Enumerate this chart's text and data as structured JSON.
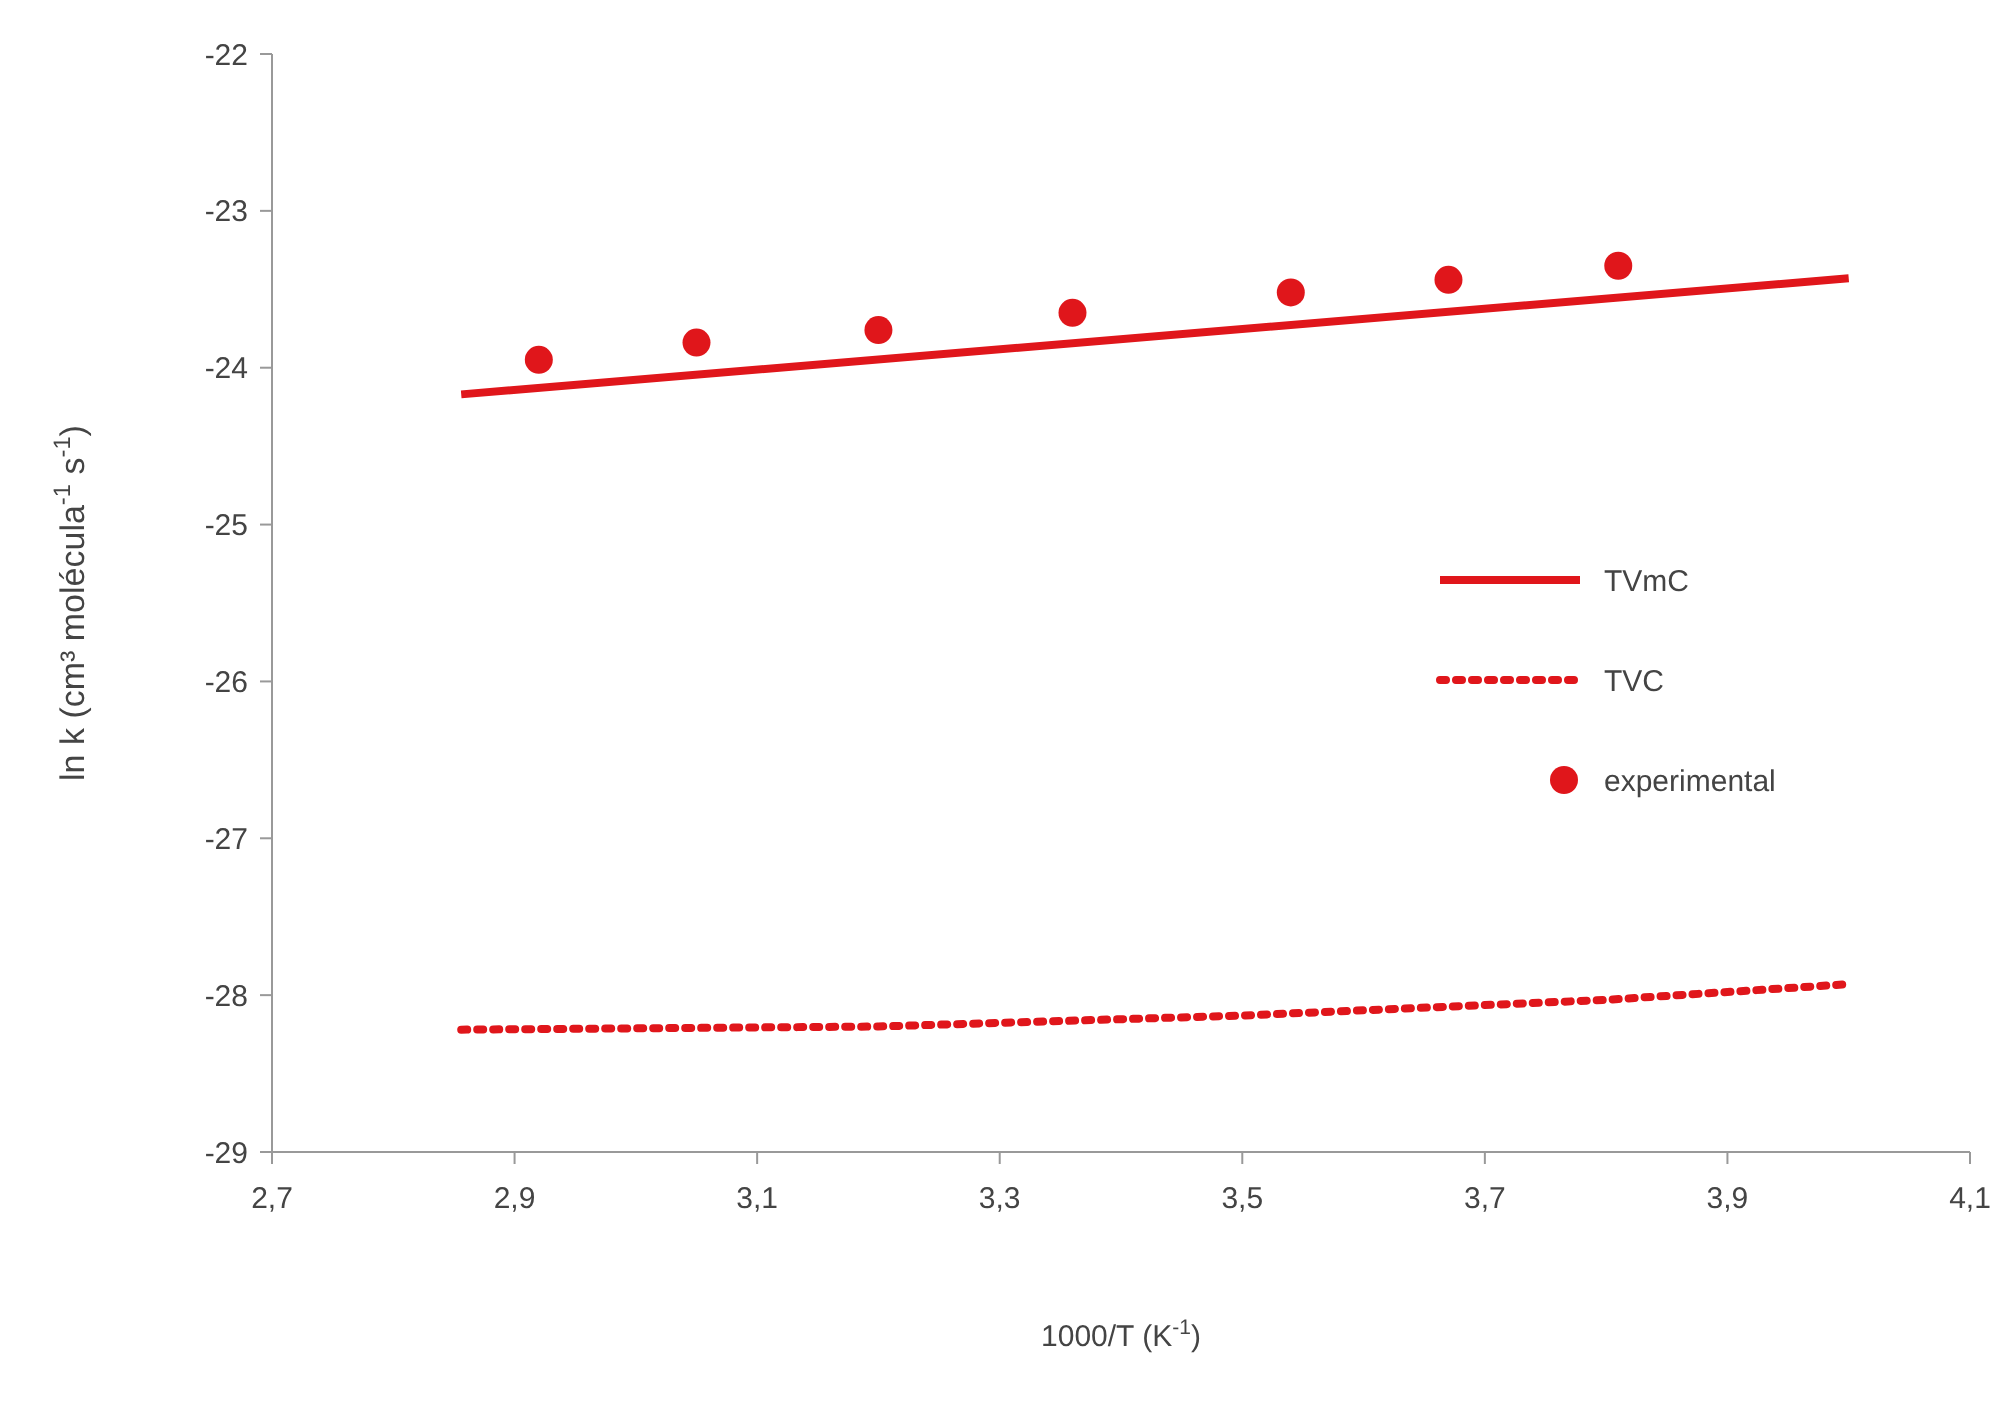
{
  "chart_data": {
    "type": "line",
    "xlabel": "1000/T (K$^{-1}$)",
    "ylabel": "ln k (cm³ molécula$^{-1}$ s$^{-1}$)",
    "xlim": [
      2.7,
      4.1
    ],
    "xticks": [
      {
        "value": 2.7,
        "label": "2,7"
      },
      {
        "value": 2.9,
        "label": "2,9"
      },
      {
        "value": 3.1,
        "label": "3,1"
      },
      {
        "value": 3.3,
        "label": "3,3"
      },
      {
        "value": 3.5,
        "label": "3,5"
      },
      {
        "value": 3.7,
        "label": "3,7"
      },
      {
        "value": 3.9,
        "label": "3,9"
      },
      {
        "value": 4.1,
        "label": "4,1"
      }
    ],
    "ylim": [
      -29,
      -22
    ],
    "yticks": [
      -29,
      -28,
      -27,
      -26,
      -25,
      -24,
      -23,
      -22
    ],
    "grid": false,
    "legend": "right",
    "series": [
      {
        "name": "TVmC",
        "line_style": "solid",
        "color": "#e0161b",
        "x": [
          2.856,
          4.0
        ],
        "values": [
          -24.17,
          -23.43
        ]
      },
      {
        "name": "TVC",
        "line_style": "dotted",
        "color": "#e0161b",
        "x": [
          2.856,
          3.2,
          3.5,
          3.8,
          4.0
        ],
        "values": [
          -28.22,
          -28.2,
          -28.13,
          -28.03,
          -27.93
        ]
      },
      {
        "name": "experimental",
        "type": "scatter",
        "marker": "circle",
        "color": "#e0161b",
        "x": [
          2.92,
          3.05,
          3.2,
          3.36,
          3.54,
          3.67,
          3.81
        ],
        "values": [
          -23.95,
          -23.84,
          -23.76,
          -23.65,
          -23.52,
          -23.44,
          -23.35
        ]
      }
    ]
  }
}
